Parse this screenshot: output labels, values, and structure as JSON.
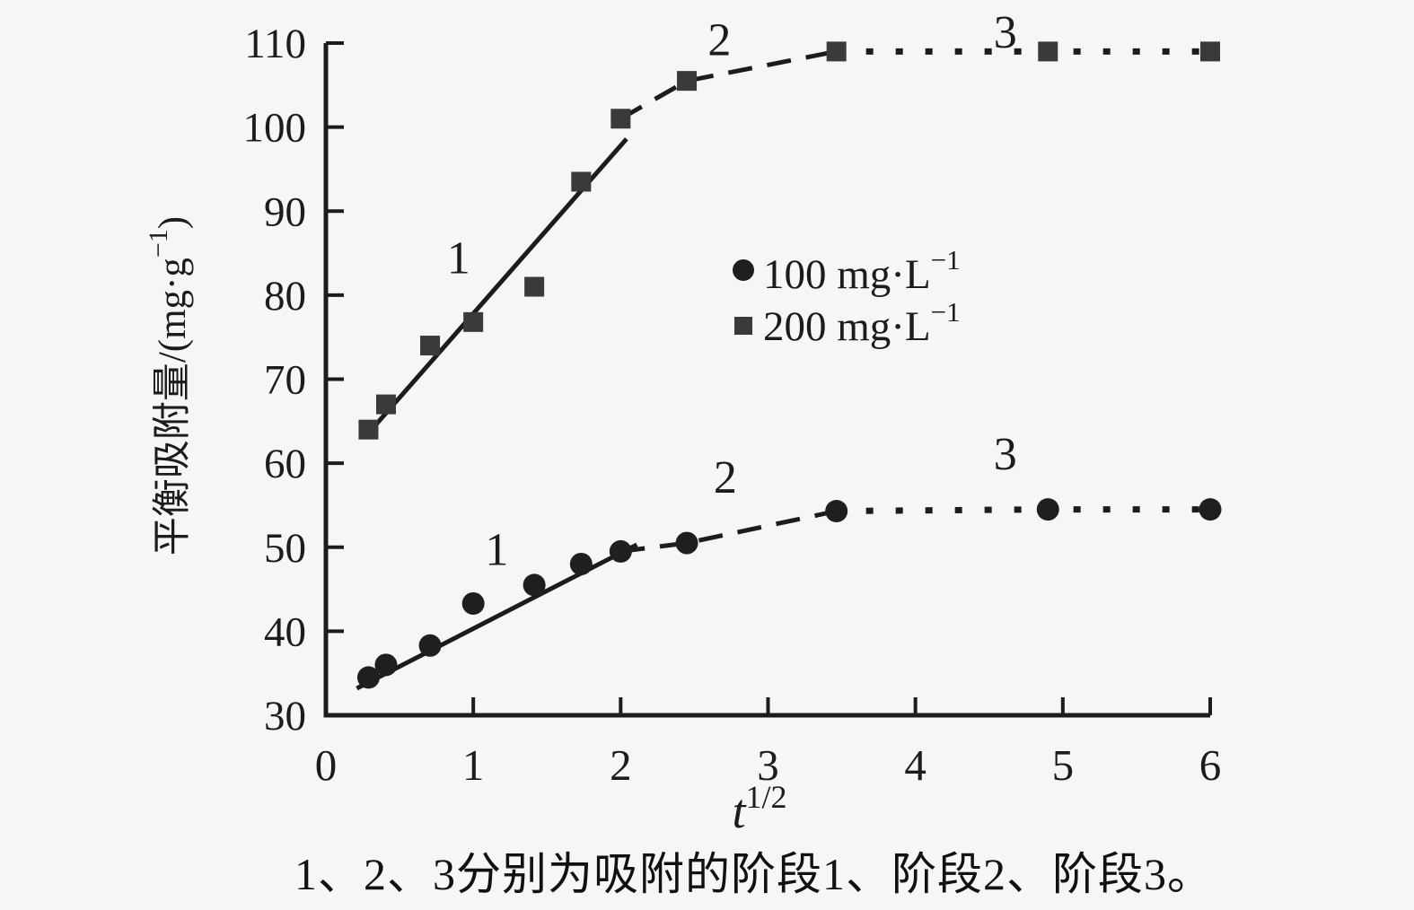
{
  "figure": {
    "background": "#f6f6f5",
    "ink": "#1c1c1c"
  },
  "chart_data": {
    "type": "scatter",
    "title": "",
    "xlabel_base": "t",
    "xlabel_sup": "1/2",
    "ylabel_pre": "平衡吸附量/(mg·g",
    "ylabel_sup": "−1",
    "ylabel_post": ")",
    "xlim": [
      0,
      6
    ],
    "ylim": [
      30,
      110
    ],
    "x_ticks": [
      "0",
      "1",
      "2",
      "3",
      "4",
      "5",
      "6"
    ],
    "x_tick_values": [
      0,
      1,
      2,
      3,
      4,
      5,
      6
    ],
    "y_ticks": [
      "30",
      "40",
      "50",
      "60",
      "70",
      "80",
      "90",
      "100",
      "110"
    ],
    "y_tick_values": [
      30,
      40,
      50,
      60,
      70,
      80,
      90,
      100,
      110
    ],
    "grid": false,
    "legend_position": "center-right",
    "x": [
      0.289,
      0.408,
      0.707,
      1.0,
      1.414,
      1.732,
      2.0,
      2.449,
      3.464,
      4.899,
      6.0
    ],
    "series": [
      {
        "name": "100 mg·L−1",
        "legend_base": "100 mg·L",
        "legend_sup": "−1",
        "marker": "circle",
        "color": "#1f1f1f",
        "values": [
          34.5,
          36,
          38.3,
          43.3,
          45.5,
          48,
          49.5,
          50.5,
          54.3,
          54.5,
          54.5
        ],
        "fit_line": {
          "x1": 0.21,
          "y1": 33.2,
          "x2": 2.11,
          "y2": 50.3
        },
        "dashed_span": [
          6,
          8
        ],
        "dotted_span": [
          8,
          10
        ],
        "stage_labels": [
          {
            "text": "1",
            "x": 1.16,
            "y": 49.8
          },
          {
            "text": "2",
            "x": 2.71,
            "y": 58.4
          },
          {
            "text": "3",
            "x": 4.61,
            "y": 61.2
          }
        ]
      },
      {
        "name": "200 mg·L−1",
        "legend_base": "200 mg·L",
        "legend_sup": "−1",
        "marker": "square",
        "color": "#3a3a3a",
        "values": [
          64,
          67,
          74,
          76.8,
          81,
          93.5,
          101,
          105.5,
          109,
          109,
          109
        ],
        "fit_line": {
          "x1": 0.26,
          "y1": 63.0,
          "x2": 2.04,
          "y2": 98.6
        },
        "dashed_span": [
          6,
          8
        ],
        "dotted_span": [
          8,
          10
        ],
        "stage_labels": [
          {
            "text": "1",
            "x": 0.9,
            "y": 84.5
          },
          {
            "text": "2",
            "x": 2.67,
            "y": 110.5
          },
          {
            "text": "3",
            "x": 4.61,
            "y": 111.4
          }
        ]
      }
    ]
  },
  "caption": "1、2、3分别为吸附的阶段1、阶段2、阶段3。"
}
